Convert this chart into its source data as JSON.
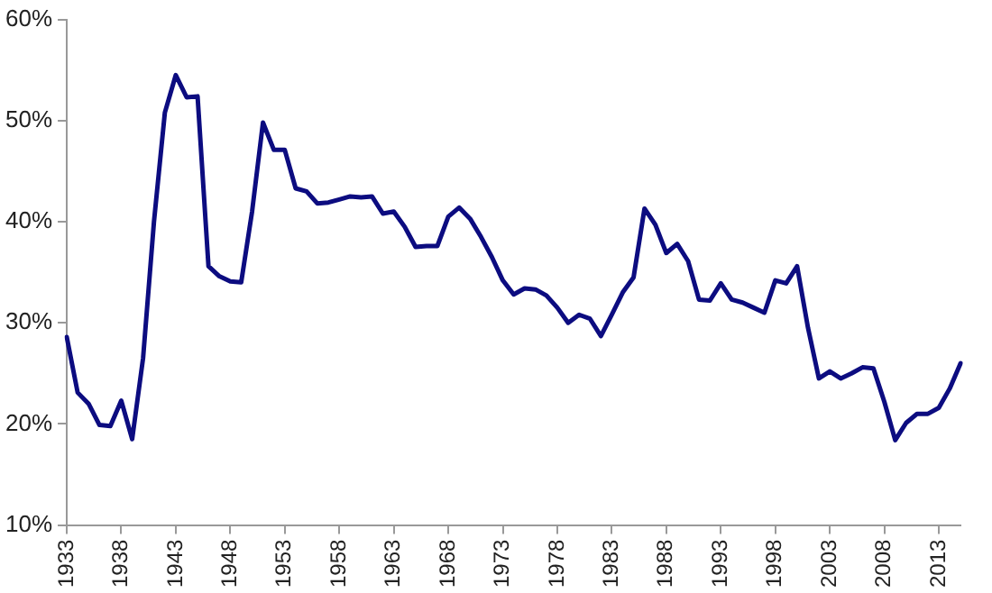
{
  "chart_data": {
    "type": "line",
    "categories": [
      "1933",
      null,
      null,
      null,
      null,
      "1938",
      null,
      null,
      null,
      null,
      "1943",
      null,
      null,
      null,
      null,
      "1948",
      null,
      null,
      null,
      null,
      "1953",
      null,
      null,
      null,
      null,
      "1958",
      null,
      null,
      null,
      null,
      "1963",
      null,
      null,
      null,
      null,
      "1968",
      null,
      null,
      null,
      null,
      "1973",
      null,
      null,
      null,
      null,
      "1978",
      null,
      null,
      null,
      null,
      "1983",
      null,
      null,
      null,
      null,
      "1988",
      null,
      null,
      null,
      null,
      "1993",
      null,
      null,
      null,
      null,
      "1998",
      null,
      null,
      null,
      null,
      "2003",
      null,
      null,
      null,
      null,
      "2008",
      null,
      null,
      null,
      null,
      "2013",
      null,
      null
    ],
    "series": [
      {
        "color": "#0c0c80",
        "values": [
          28.6,
          23.1,
          22.0,
          19.9,
          19.8,
          22.3,
          18.5,
          26.5,
          40,
          50.8,
          54.5,
          52.3,
          52.4,
          35.6,
          34.6,
          34.1,
          34.0,
          41,
          49.8,
          47.1,
          47.1,
          43.3,
          43.0,
          41.8,
          41.9,
          42.2,
          42.5,
          42.4,
          42.5,
          40.8,
          41.0,
          39.5,
          37.5,
          37.6,
          37.6,
          40.5,
          41.4,
          40.3,
          38.5,
          36.5,
          34.2,
          32.8,
          33.4,
          33.3,
          32.7,
          31.5,
          30.0,
          30.8,
          30.4,
          28.7,
          30.8,
          33.0,
          34.5,
          41.3,
          39.7,
          36.9,
          37.8,
          36.1,
          32.3,
          32.2,
          33.9,
          32.3,
          32.0,
          31.5,
          31.0,
          34.2,
          33.9,
          35.6,
          29.5,
          24.5,
          25.2,
          24.5,
          25.0,
          25.6,
          25.5,
          22.2,
          18.4,
          20.1,
          21.0,
          21.0,
          21.6,
          23.5,
          26.0
        ]
      }
    ],
    "ylim": [
      10,
      60
    ],
    "yticks": [
      {
        "value": 10,
        "label": "10%"
      },
      {
        "value": 20,
        "label": "20%"
      },
      {
        "value": 30,
        "label": "30%"
      },
      {
        "value": 40,
        "label": "40%"
      },
      {
        "value": 50,
        "label": "50%"
      },
      {
        "value": 60,
        "label": "60%"
      }
    ],
    "grid": false,
    "legend": false,
    "marker": "none",
    "line_style": "solid"
  }
}
